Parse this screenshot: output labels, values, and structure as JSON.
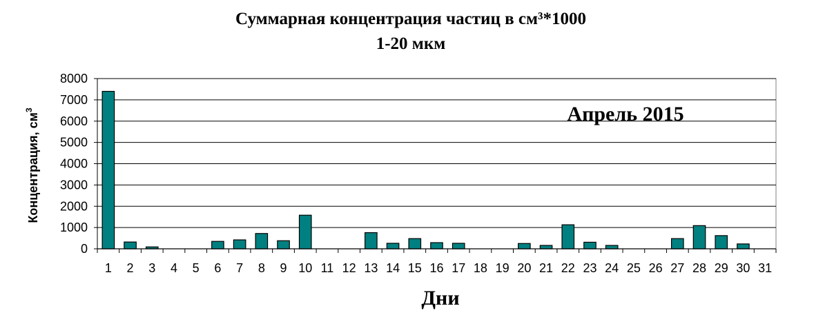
{
  "chart_data": {
    "type": "bar",
    "title_line1": "Суммарная концентрация частиц в см³*1000",
    "title_line2": "1-20 мкм",
    "xlabel": "Дни",
    "ylabel": "Концентрация, см",
    "ylabel_sup": "3",
    "annotation": "Апрель 2015",
    "ylim": [
      0,
      8000
    ],
    "yticks": [
      0,
      1000,
      2000,
      3000,
      4000,
      5000,
      6000,
      7000,
      8000
    ],
    "grid": true,
    "bar_color": "#008080",
    "categories": [
      "1",
      "2",
      "3",
      "4",
      "5",
      "6",
      "7",
      "8",
      "9",
      "10",
      "11",
      "12",
      "13",
      "14",
      "15",
      "16",
      "17",
      "18",
      "19",
      "20",
      "21",
      "22",
      "23",
      "24",
      "25",
      "26",
      "27",
      "28",
      "29",
      "30",
      "31"
    ],
    "values": [
      7400,
      320,
      90,
      0,
      0,
      350,
      420,
      720,
      380,
      1580,
      0,
      0,
      760,
      260,
      480,
      290,
      260,
      0,
      0,
      250,
      160,
      1130,
      310,
      160,
      0,
      0,
      480,
      1090,
      620,
      230,
      0
    ]
  }
}
